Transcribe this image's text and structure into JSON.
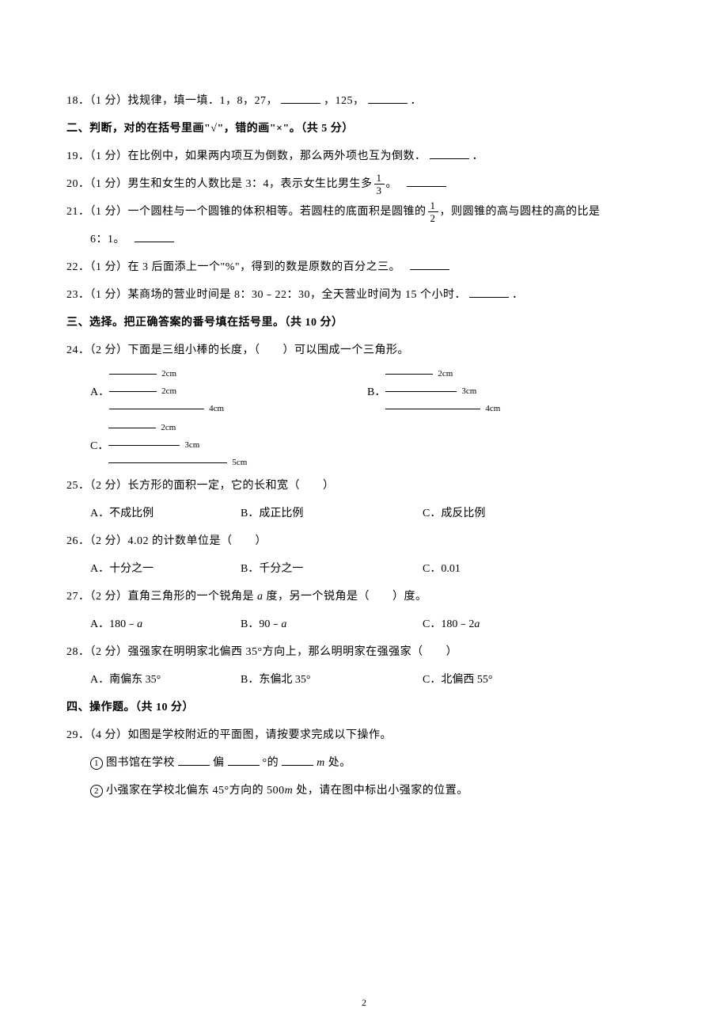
{
  "q18": {
    "label": "18．（1 分）找规律，填一填．1，8，27，",
    "mid": "，125，",
    "end": "．"
  },
  "section2": {
    "title": "二、判断，对的在括号里画\"√\"，错的画\"×\"。（共 5 分）"
  },
  "q19": {
    "text": "19．（1 分）在比例中，如果两内项互为倒数，那么两外项也互为倒数．",
    "end": "．"
  },
  "q20": {
    "prefix": "20．（1 分）男生和女生的人数比是 3：4，表示女生比男生多",
    "frac_num": "1",
    "frac_den": "3",
    "suffix": "。"
  },
  "q21": {
    "prefix": "21．（1 分）一个圆柱与一个圆锥的体积相等。若圆柱的底面积是圆锥的",
    "frac_num": "1",
    "frac_den": "2",
    "suffix": "，则圆锥的高与圆柱的高的比是",
    "line2": "6：1。"
  },
  "q22": {
    "text": "22．（1 分）在 3 后面添上一个\"%\"，得到的数是原数的百分之三。"
  },
  "q23": {
    "text": "23．（1 分）某商场的营业时间是 8：30﹣22：30，全天营业时间为 15 个小时．",
    "end": "．"
  },
  "section3": {
    "title": "三、选择。把正确答案的番号填在括号里。（共 10 分）"
  },
  "q24": {
    "text": "24．（2 分）下面是三组小棒的长度，（　　）可以围成一个三角形。",
    "optA": "A．",
    "optB": "B．",
    "optC": "C．",
    "sticksA": [
      {
        "len": 60,
        "label": "2cm"
      },
      {
        "len": 60,
        "label": "2cm"
      },
      {
        "len": 120,
        "label": "4cm"
      }
    ],
    "sticksB": [
      {
        "len": 60,
        "label": "2cm"
      },
      {
        "len": 90,
        "label": "3cm"
      },
      {
        "len": 120,
        "label": "4cm"
      }
    ],
    "sticksC": [
      {
        "len": 60,
        "label": "2cm"
      },
      {
        "len": 90,
        "label": "3cm"
      },
      {
        "len": 150,
        "label": "5cm"
      }
    ]
  },
  "q25": {
    "text": "25．（2 分）长方形的面积一定，它的长和宽（　　）",
    "optA": "A．不成比例",
    "optB": "B．成正比例",
    "optC": "C．成反比例"
  },
  "q26": {
    "text": "26．（2 分）4.02 的计数单位是（　　）",
    "optA": "A．十分之一",
    "optB": "B．千分之一",
    "optC": "C．0.01"
  },
  "q27": {
    "text_pre": "27．（2 分）直角三角形的一个锐角是 ",
    "var": "a",
    "text_post": " 度，另一个锐角是（　　）度。",
    "optA_pre": "A．180﹣",
    "optB_pre": "B．90﹣",
    "optC_pre": "C．180﹣2"
  },
  "q28": {
    "text": "28．（2 分）强强家在明明家北偏西 35°方向上，那么明明家在强强家（　　）",
    "optA": "A．南偏东 35°",
    "optB": "B．东偏北 35°",
    "optC": "C．北偏西 55°"
  },
  "section4": {
    "title": "四、操作题。（共 10 分）"
  },
  "q29": {
    "text": "29．（4 分）如图是学校附近的平面图，请按要求完成以下操作。",
    "sub1_num": "1",
    "sub1_pre": "图书馆在学校",
    "sub1_mid1": "偏",
    "sub1_mid2": "°的",
    "sub1_var": "m",
    "sub1_post": " 处。",
    "sub2_num": "2",
    "sub2_pre": "小强家在学校北偏东 45°方向的 500",
    "sub2_var": "m",
    "sub2_post": " 处，请在图中标出小强家的位置。"
  },
  "page_number": "2"
}
